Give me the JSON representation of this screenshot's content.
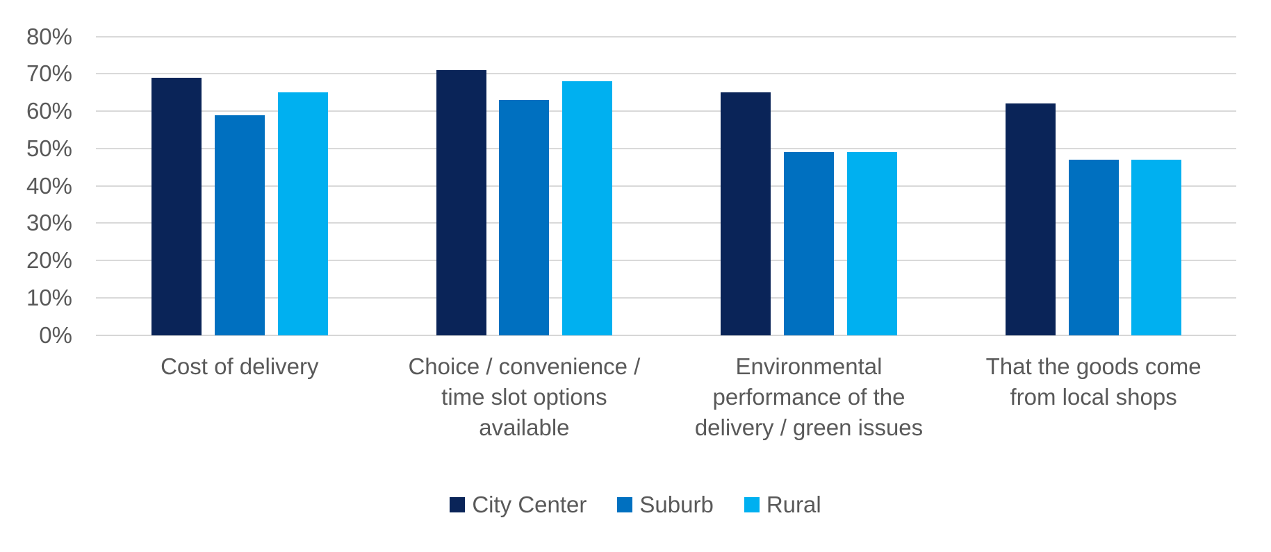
{
  "chart_data": {
    "type": "bar",
    "title": "",
    "xlabel": "",
    "ylabel": "",
    "categories": [
      "Cost of delivery",
      "Choice / convenience / time slot options available",
      "Environmental performance of the delivery / green issues",
      "That the goods come from local shops"
    ],
    "category_label_lines": [
      [
        "Cost of delivery"
      ],
      [
        "Choice / convenience /",
        "time slot options",
        "available"
      ],
      [
        "Environmental",
        "performance of the",
        "delivery / green issues"
      ],
      [
        "That the goods come",
        "from local shops"
      ]
    ],
    "series": [
      {
        "name": "City Center",
        "color": "#0a2458",
        "values": [
          69,
          71,
          65,
          62
        ]
      },
      {
        "name": "Suburb",
        "color": "#0070c0",
        "values": [
          59,
          63,
          49,
          47
        ]
      },
      {
        "name": "Rural",
        "color": "#00b0f0",
        "values": [
          65,
          68,
          49,
          47
        ]
      }
    ],
    "y_axis": {
      "min": 0,
      "max": 80,
      "step": 10,
      "tick_labels": [
        "0%",
        "10%",
        "20%",
        "30%",
        "40%",
        "50%",
        "60%",
        "70%",
        "80%"
      ]
    },
    "grid": true,
    "legend_position": "bottom",
    "colors": {
      "axis_text": "#595959",
      "gridline": "#d9d9d9",
      "background": "#ffffff"
    }
  }
}
